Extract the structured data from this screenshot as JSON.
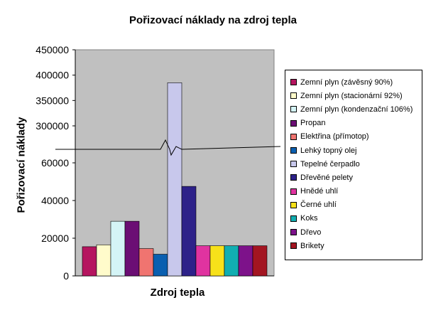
{
  "chart_data": {
    "type": "bar",
    "title": "Pořizovací náklady na zdroj tepla",
    "xlabel": "Zdroj tepla",
    "ylabel": "Pořizovací náklady",
    "axis_break": true,
    "lower_segment": {
      "range": [
        0,
        60000
      ],
      "ticks": [
        0,
        20000,
        40000,
        60000
      ]
    },
    "upper_segment": {
      "range": [
        300000,
        450000
      ],
      "ticks": [
        300000,
        350000,
        400000,
        450000
      ]
    },
    "plot_background": "#c0c0c0",
    "grid": false,
    "legend_position": "right",
    "series": [
      {
        "name": "Zemní plyn (závěsný 90%)",
        "value": 15500,
        "color": "#b5155f"
      },
      {
        "name": "Zemní plyn (stacionární 92%)",
        "value": 16500,
        "color": "#fffbcb"
      },
      {
        "name": "Zemní plyn (kondenzační 106%)",
        "value": 29000,
        "color": "#d4f4f6"
      },
      {
        "name": "Propan",
        "value": 29000,
        "color": "#6b0e74"
      },
      {
        "name": "Elektřina (přímotop)",
        "value": 14500,
        "color": "#f07470"
      },
      {
        "name": "Lehký topný olej",
        "value": 11500,
        "color": "#0a5fb0"
      },
      {
        "name": "Tepelné čerpadlo",
        "value": 385000,
        "color": "#c8c8ec"
      },
      {
        "name": "Dřevěné pelety",
        "value": 47500,
        "color": "#2d2189"
      },
      {
        "name": "Hnědé uhlí",
        "value": 16000,
        "color": "#e033a0"
      },
      {
        "name": "Černé uhlí",
        "value": 16000,
        "color": "#f7e11a"
      },
      {
        "name": "Koks",
        "value": 16000,
        "color": "#11aeb1"
      },
      {
        "name": "Dřevo",
        "value": 16000,
        "color": "#7d128a"
      },
      {
        "name": "Brikety",
        "value": 16000,
        "color": "#a31521"
      }
    ]
  }
}
